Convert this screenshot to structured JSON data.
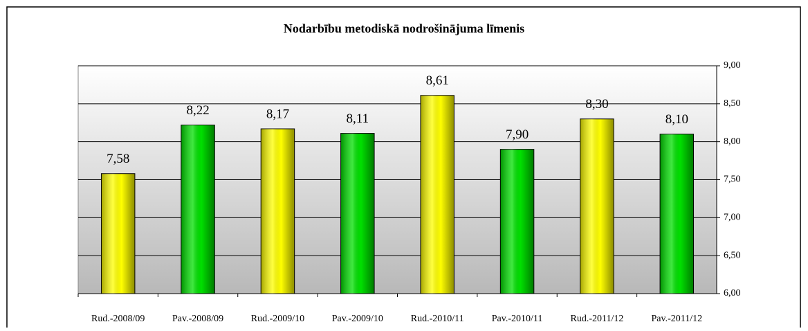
{
  "chart_data": {
    "type": "bar",
    "title": "Nodarbību metodiskā nodrošinājuma līmenis",
    "categories": [
      "Rud.-2008/09",
      "Pav.-2008/09",
      "Rud.-2009/10",
      "Pav.-2009/10",
      "Rud.-2010/11",
      "Pav.-2010/11",
      "Rud.-2011/12",
      "Pav.-2011/12"
    ],
    "values": [
      7.58,
      8.22,
      8.17,
      8.11,
      8.61,
      7.9,
      8.3,
      8.1
    ],
    "value_labels": [
      "7,58",
      "8,22",
      "8,17",
      "8,11",
      "8,61",
      "7,90",
      "8,30",
      "8,10"
    ],
    "colors": [
      "#ffff00",
      "#00e000",
      "#ffff00",
      "#00e000",
      "#ffff00",
      "#00e000",
      "#ffff00",
      "#00e000"
    ],
    "ylim": [
      6,
      9
    ],
    "yticks": [
      {
        "value": 6,
        "label": "6,00"
      },
      {
        "value": 6.5,
        "label": "6,50"
      },
      {
        "value": 7,
        "label": "7,00"
      },
      {
        "value": 7.5,
        "label": "7,50"
      },
      {
        "value": 8,
        "label": "8,00"
      },
      {
        "value": 8.5,
        "label": "8,50"
      },
      {
        "value": 9,
        "label": "9,00"
      }
    ],
    "yaxis_side": "right",
    "grid": true
  }
}
